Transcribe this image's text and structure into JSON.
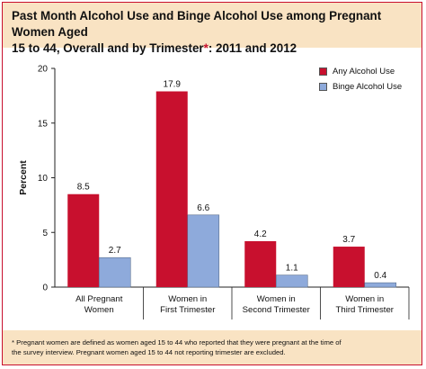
{
  "title_line1": "Past Month Alcohol Use and Binge Alcohol Use among Pregnant Women Aged",
  "title_line2_pre": "15 to 44, Overall and by Trimester",
  "title_line2_mark": "*",
  "title_line2_post": ": 2011 and 2012",
  "footnote_line1": "* Pregnant women are defined as women aged 15 to 44 who reported that they were pregnant at the time of",
  "footnote_line2": "the survey interview. Pregnant women aged 15 to 44 not reporting trimester are excluded.",
  "colors": {
    "any": "#c8102e",
    "binge": "#8eaadb",
    "accent": "#c8102e",
    "band": "#f9e3c3"
  },
  "chart_data": {
    "type": "bar",
    "categories": [
      [
        "All Pregnant",
        "Women"
      ],
      [
        "Women in",
        "First Trimester"
      ],
      [
        "Women in",
        "Second Trimester"
      ],
      [
        "Women in",
        "Third Trimester"
      ]
    ],
    "series": [
      {
        "name": "Any Alcohol Use",
        "values": [
          8.5,
          17.9,
          4.2,
          3.7
        ],
        "labels": [
          "8.5",
          "17.9",
          "4.2",
          "3.7"
        ]
      },
      {
        "name": "Binge Alcohol Use",
        "values": [
          2.7,
          6.6,
          1.1,
          0.4
        ],
        "labels": [
          "2.7",
          "6.6",
          "1.1",
          "0.4"
        ]
      }
    ],
    "ylabel": "Percent",
    "ylim": [
      0,
      20
    ],
    "yticks": [
      0,
      5,
      10,
      15,
      20
    ],
    "grid": false,
    "legend_position": "top-right"
  }
}
